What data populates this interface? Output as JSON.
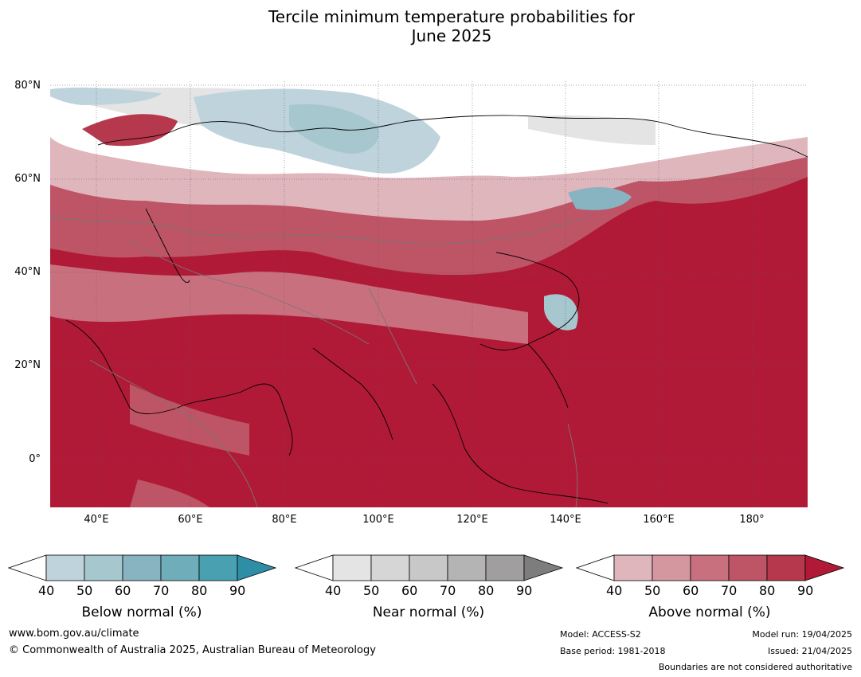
{
  "title_line1": "Tercile minimum temperature probabilities for",
  "title_line2": "June 2025",
  "map": {
    "lat_ticks": [
      "80°N",
      "60°N",
      "40°N",
      "20°N",
      "0°"
    ],
    "lon_ticks": [
      "40°E",
      "60°E",
      "80°E",
      "100°E",
      "120°E",
      "140°E",
      "160°E",
      "180°"
    ]
  },
  "colorbars": [
    {
      "label": "Below normal (%)",
      "ticks": [
        "40",
        "50",
        "60",
        "70",
        "80",
        "90"
      ],
      "colors": [
        "#ffffff",
        "#bfd3dc",
        "#a6c7cd",
        "#88b3c0",
        "#6eadb9",
        "#48a0b0",
        "#2e8ea6"
      ]
    },
    {
      "label": "Near normal (%)",
      "ticks": [
        "40",
        "50",
        "60",
        "70",
        "80",
        "90"
      ],
      "colors": [
        "#ffffff",
        "#e4e4e4",
        "#d6d6d6",
        "#c8c8c8",
        "#b4b4b4",
        "#a09e9f",
        "#7d7d7d"
      ]
    },
    {
      "label": "Above normal (%)",
      "ticks": [
        "40",
        "50",
        "60",
        "70",
        "80",
        "90"
      ],
      "colors": [
        "#ffffff",
        "#e0b6bd",
        "#d4979f",
        "#c9707f",
        "#bd5566",
        "#b5384c",
        "#b11a37"
      ]
    }
  ],
  "footer": {
    "website": "www.bom.gov.au/climate",
    "copyright": "© Commonwealth of Australia 2025, Australian Bureau of Meteorology",
    "model": "Model: ACCESS-S2",
    "base_period": "Base period: 1981-2018",
    "model_run": "Model run: 19/04/2025",
    "issued": "Issued: 21/04/2025",
    "boundaries": "Boundaries are not considered authoritative"
  }
}
